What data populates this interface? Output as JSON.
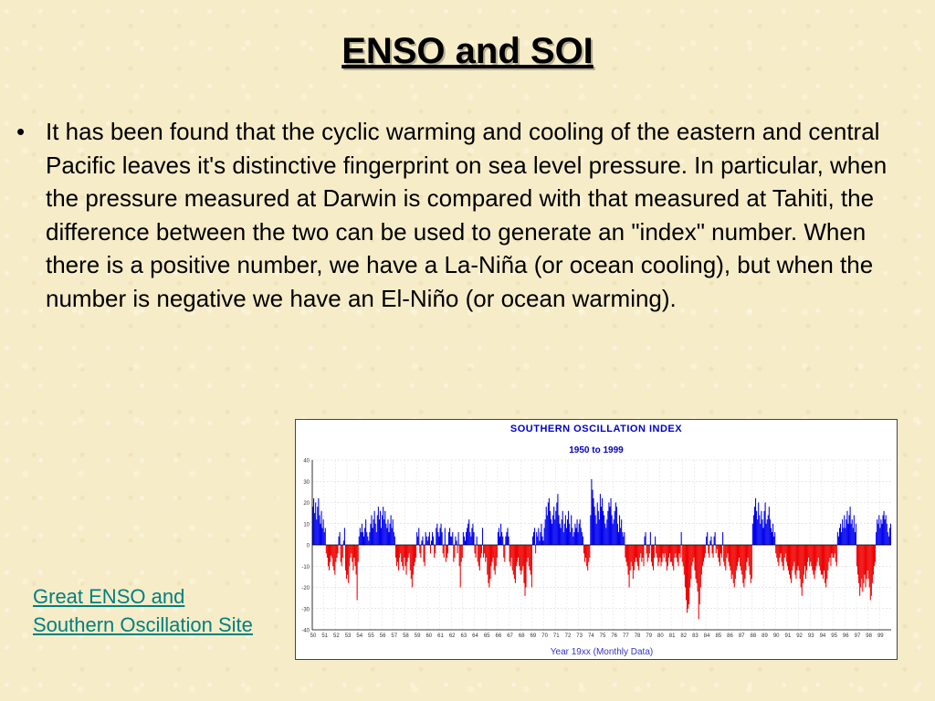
{
  "slide": {
    "title": "ENSO and SOI",
    "bullet": "•",
    "paragraph": "It has been found that the cyclic warming and cooling of the eastern and central Pacific leaves it's distinctive fingerprint on sea level pressure. In particular, when the pressure measured at Darwin is compared with that measured at Tahiti, the difference between the two can be used to generate an \"index\" number. When there is a positive number, we have a La-Niña (or ocean cooling), but when the number is negative we have an El-Niño (or ocean warming).",
    "link": "Great ENSO and Southern Oscillation Site"
  },
  "colors": {
    "positive": "#0000ee",
    "negative": "#ee0000",
    "title_text": "#0000cc",
    "axis_label": "#3333cc",
    "link": "#008080"
  },
  "chart_data": {
    "type": "bar",
    "title": "SOUTHERN OSCILLATION INDEX",
    "subtitle": "1950 to 1999",
    "xlabel": "Year 19xx (Monthly Data)",
    "ylabel": "",
    "ylim": [
      -40,
      40
    ],
    "yticks": [
      40,
      30,
      20,
      10,
      0,
      -10,
      -20,
      -30,
      -40
    ],
    "xticks": [
      "50",
      "51",
      "52",
      "53",
      "54",
      "55",
      "56",
      "57",
      "58",
      "59",
      "60",
      "61",
      "62",
      "63",
      "64",
      "65",
      "66",
      "67",
      "68",
      "69",
      "70",
      "71",
      "72",
      "73",
      "74",
      "75",
      "76",
      "77",
      "78",
      "79",
      "80",
      "81",
      "82",
      "83",
      "84",
      "85",
      "86",
      "87",
      "88",
      "89",
      "90",
      "91",
      "92",
      "93",
      "94",
      "95",
      "96",
      "97",
      "98",
      "99"
    ],
    "grid": true,
    "series": [
      {
        "values": [
          18,
          22,
          15,
          20,
          12,
          18,
          22,
          14,
          10,
          16,
          8,
          12,
          6,
          8,
          -4,
          -6,
          -10,
          -12,
          -8,
          -5,
          -6,
          -10,
          -12,
          -14,
          -8,
          -6,
          -4,
          4,
          6,
          -8,
          -10,
          -6,
          2,
          8,
          -12,
          -16,
          -14,
          -18,
          -10,
          -6,
          -4,
          -8,
          -12,
          -6,
          -10,
          -14,
          -26,
          -8,
          4,
          8,
          6,
          10,
          6,
          4,
          8,
          12,
          6,
          4,
          2,
          6,
          10,
          14,
          8,
          12,
          16,
          10,
          6,
          14,
          18,
          12,
          16,
          8,
          14,
          18,
          12,
          16,
          10,
          8,
          12,
          6,
          10,
          14,
          8,
          12,
          6,
          4,
          -6,
          -10,
          -8,
          -12,
          -6,
          -4,
          -8,
          -10,
          -12,
          -6,
          -10,
          -14,
          -8,
          -6,
          -4,
          -12,
          -16,
          -20,
          -14,
          -10,
          -8,
          -6,
          6,
          4,
          8,
          -4,
          -6,
          2,
          4,
          -8,
          -10,
          6,
          4,
          2,
          4,
          6,
          -4,
          2,
          6,
          4,
          -6,
          -4,
          8,
          10,
          6,
          4,
          8,
          10,
          6,
          -4,
          -6,
          8,
          -8,
          -6,
          -4,
          6,
          8,
          4,
          4,
          6,
          -8,
          -6,
          4,
          2,
          -4,
          6,
          -10,
          -20,
          -8,
          -6,
          6,
          4,
          2,
          6,
          8,
          10,
          12,
          6,
          4,
          8,
          10,
          6,
          -4,
          -6,
          4,
          -8,
          -10,
          -12,
          -6,
          -4,
          8,
          -6,
          -4,
          -8,
          -6,
          -14,
          -18,
          -20,
          -16,
          -10,
          -8,
          -6,
          -12,
          -14,
          -10,
          -6,
          6,
          8,
          4,
          10,
          6,
          4,
          -6,
          -8,
          4,
          6,
          8,
          4,
          -8,
          -10,
          -6,
          -12,
          -14,
          -16,
          -18,
          -10,
          -8,
          -6,
          -10,
          -12,
          -14,
          -12,
          -10,
          -18,
          -24,
          -20,
          -8,
          -6,
          -10,
          -12,
          -14,
          -20,
          4,
          6,
          8,
          -4,
          6,
          4,
          8,
          2,
          6,
          10,
          4,
          2,
          8,
          12,
          18,
          14,
          20,
          22,
          16,
          12,
          10,
          14,
          18,
          12,
          16,
          20,
          24,
          14,
          10,
          8,
          12,
          16,
          6,
          10,
          14,
          8,
          12,
          16,
          10,
          6,
          14,
          8,
          4,
          6,
          10,
          8,
          12,
          6,
          10,
          12,
          8,
          6,
          4,
          -4,
          -8,
          -6,
          -10,
          -12,
          -8,
          -6,
          14,
          31,
          26,
          22,
          18,
          14,
          10,
          20,
          16,
          12,
          24,
          18,
          22,
          16,
          14,
          10,
          8,
          12,
          16,
          20,
          18,
          22,
          14,
          10,
          12,
          16,
          20,
          18,
          10,
          6,
          14,
          8,
          12,
          6,
          4,
          6,
          -6,
          -8,
          -10,
          -14,
          -20,
          -12,
          -8,
          -10,
          -16,
          -12,
          -8,
          -6,
          -8,
          -10,
          -12,
          -6,
          -4,
          -8,
          -6,
          -10,
          4,
          6,
          -4,
          -8,
          -6,
          -4,
          6,
          -8,
          -10,
          -12,
          -6,
          4,
          -4,
          -6,
          -10,
          -8,
          -6,
          -10,
          -8,
          -4,
          -6,
          -4,
          -8,
          -12,
          -10,
          -6,
          -4,
          -8,
          -8,
          -10,
          -12,
          -6,
          -4,
          -6,
          -8,
          -10,
          -4,
          -6,
          6,
          -8,
          -10,
          -14,
          -20,
          -26,
          -32,
          -30,
          -28,
          -20,
          -16,
          -10,
          -8,
          -6,
          -12,
          -16,
          -18,
          -22,
          -35,
          -28,
          -20,
          -14,
          -10,
          -8,
          -6,
          -4,
          4,
          6,
          -4,
          -6,
          2,
          4,
          -4,
          -6,
          4,
          6,
          -4,
          -2,
          -6,
          -8,
          -10,
          -4,
          -6,
          6,
          -8,
          -10,
          -12,
          -6,
          -4,
          -8,
          -10,
          -12,
          -16,
          -14,
          -18,
          -20,
          -16,
          -12,
          -10,
          -8,
          -6,
          -10,
          -12,
          -14,
          -18,
          -20,
          -16,
          -12,
          -8,
          -6,
          -10,
          -14,
          -18,
          -16,
          10,
          14,
          18,
          22,
          16,
          12,
          20,
          14,
          10,
          16,
          12,
          8,
          16,
          20,
          10,
          12,
          14,
          18,
          12,
          8,
          6,
          10,
          4,
          6,
          -4,
          -6,
          -8,
          -10,
          -6,
          -4,
          -8,
          -10,
          -12,
          -6,
          -4,
          -8,
          -10,
          -12,
          -14,
          -16,
          -18,
          -12,
          -10,
          -8,
          -14,
          -16,
          -12,
          -10,
          -12,
          -16,
          -20,
          -24,
          -18,
          -14,
          -10,
          -16,
          -12,
          -8,
          -6,
          -10,
          -8,
          -10,
          -12,
          -14,
          -16,
          -12,
          -10,
          -8,
          -6,
          -10,
          -12,
          -14,
          -14,
          -16,
          -12,
          -18,
          -20,
          -16,
          -12,
          -8,
          -6,
          -10,
          -4,
          -6,
          -6,
          -4,
          -8,
          -10,
          6,
          4,
          8,
          10,
          6,
          12,
          8,
          14,
          8,
          12,
          16,
          10,
          14,
          18,
          10,
          12,
          8,
          14,
          6,
          10,
          -10,
          -14,
          -18,
          -24,
          -20,
          -16,
          -22,
          -18,
          -14,
          -20,
          -16,
          -12,
          -16,
          -20,
          -26,
          -24,
          -18,
          -14,
          -10,
          -8,
          6,
          12,
          10,
          14,
          8,
          12,
          10,
          14,
          16,
          12,
          14,
          10,
          6,
          4,
          8,
          10
        ]
      }
    ]
  }
}
